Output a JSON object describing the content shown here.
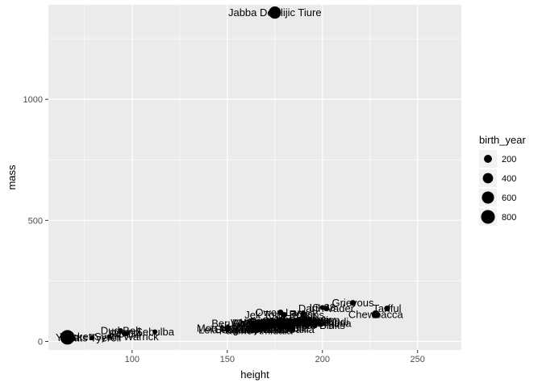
{
  "chart_data": {
    "type": "scatter",
    "title": "",
    "xlabel": "height",
    "ylabel": "mass",
    "xlim": [
      56,
      273
    ],
    "ylim": [
      -35,
      1390
    ],
    "x_ticks": [
      100,
      150,
      200,
      250
    ],
    "y_ticks": [
      0,
      500,
      1000
    ],
    "x_tick_labels": [
      "100",
      "150",
      "200",
      "250"
    ],
    "y_tick_labels": [
      "0",
      "500",
      "1000"
    ],
    "grid": true,
    "colors": {
      "panel": "#ebebeb",
      "grid": "#ffffff",
      "point": "#000000"
    },
    "legend": {
      "title": "birth_year",
      "placement": "right",
      "entries": [
        {
          "label": "200",
          "value": 200
        },
        {
          "label": "400",
          "value": 400
        },
        {
          "label": "600",
          "value": 600
        },
        {
          "label": "800",
          "value": 800
        }
      ]
    },
    "size_scale": {
      "min_value": 8,
      "max_value": 896
    },
    "points": [
      {
        "label": "Jabba Desilijic Tiure",
        "x": 175,
        "y": 1358,
        "size": 600
      },
      {
        "label": "Grievous",
        "x": 216,
        "y": 159,
        "size": 60
      },
      {
        "label": "Tarfful",
        "x": 234,
        "y": 136,
        "size": 60
      },
      {
        "label": "IG-88",
        "x": 200,
        "y": 140,
        "size": 15
      },
      {
        "label": "Darth Vader",
        "x": 202,
        "y": 136,
        "size": 42
      },
      {
        "label": "Chewbacca",
        "x": 228,
        "y": 112,
        "size": 200
      },
      {
        "label": "Owen Lars",
        "x": 178,
        "y": 120,
        "size": 52
      },
      {
        "label": "Qui-Gon Jinn",
        "x": 193,
        "y": 89,
        "size": 92
      },
      {
        "label": "Jek Tono Porkins",
        "x": 180,
        "y": 110,
        "size": 40
      },
      {
        "label": "Nute Gunray",
        "x": 191,
        "y": 90,
        "size": 60
      },
      {
        "label": "Ki-Adi-Mundi",
        "x": 198,
        "y": 82,
        "size": 92
      },
      {
        "label": "Cliegg Lars",
        "x": 183,
        "y": 80,
        "size": 82
      },
      {
        "label": "Lando Calrissian",
        "x": 177,
        "y": 79,
        "size": 31
      },
      {
        "label": "Gregar Typho",
        "x": 185,
        "y": 85,
        "size": 60
      },
      {
        "label": "Obi-Wan Kenobi",
        "x": 182,
        "y": 77,
        "size": 57
      },
      {
        "label": "Luke Skywalker",
        "x": 172,
        "y": 77,
        "size": 19
      },
      {
        "label": "Han Solo",
        "x": 180,
        "y": 80,
        "size": 29
      },
      {
        "label": "Biggs Darklighter",
        "x": 183,
        "y": 84,
        "size": 24
      },
      {
        "label": "Wedge Antilles",
        "x": 170,
        "y": 77,
        "size": 21
      },
      {
        "label": "Boba Fett",
        "x": 183,
        "y": 78,
        "size": 31
      },
      {
        "label": "Palpatine",
        "x": 170,
        "y": 75,
        "size": 82
      },
      {
        "label": "Mace Windu",
        "x": 188,
        "y": 84,
        "size": 72
      },
      {
        "label": "Dooku",
        "x": 193,
        "y": 80,
        "size": 102
      },
      {
        "label": "Bail Prestor Organa",
        "x": 191,
        "y": 75,
        "size": 67
      },
      {
        "label": "Jango Fett",
        "x": 183,
        "y": 79,
        "size": 66
      },
      {
        "label": "Lobot",
        "x": 175,
        "y": 79,
        "size": 37
      },
      {
        "label": "Wilhuff Tarkin",
        "x": 180,
        "y": 70,
        "size": 64
      },
      {
        "label": "Jar Jar Binks",
        "x": 196,
        "y": 66,
        "size": 52
      },
      {
        "label": "Ackbar",
        "x": 180,
        "y": 83,
        "size": 41
      },
      {
        "label": "Poggle the Lesser",
        "x": 183,
        "y": 80,
        "size": 30
      },
      {
        "label": "Plo Koon",
        "x": 188,
        "y": 80,
        "size": 22
      },
      {
        "label": "Finis Valorum",
        "x": 170,
        "y": 75,
        "size": 91
      },
      {
        "label": "Barriss Offee",
        "x": 166,
        "y": 50,
        "size": 40
      },
      {
        "label": "Luminara Unduli",
        "x": 170,
        "y": 56,
        "size": 58
      },
      {
        "label": "Ayla Secura",
        "x": 178,
        "y": 55,
        "size": 48
      },
      {
        "label": "Shmi Skywalker",
        "x": 163,
        "y": 50,
        "size": 72
      },
      {
        "label": "Beru Whitesun lars",
        "x": 165,
        "y": 75,
        "size": 47
      },
      {
        "label": "Padmé Amidala",
        "x": 165,
        "y": 45,
        "size": 46
      },
      {
        "label": "Leia Organa",
        "x": 150,
        "y": 49,
        "size": 19
      },
      {
        "label": "Mon Mothma",
        "x": 150,
        "y": 55,
        "size": 48
      },
      {
        "label": "Zam Wesell",
        "x": 168,
        "y": 55,
        "size": 30
      },
      {
        "label": "Adi Gallia",
        "x": 184,
        "y": 50,
        "size": 55
      },
      {
        "label": "Darth Maul",
        "x": 175,
        "y": 80,
        "size": 54
      },
      {
        "label": "Bossk",
        "x": 190,
        "y": 113,
        "size": 53
      },
      {
        "label": "R2-D2",
        "x": 96,
        "y": 32,
        "size": 33
      },
      {
        "label": "C-3PO",
        "x": 167,
        "y": 75,
        "size": 112
      },
      {
        "label": "R5-D4",
        "x": 97,
        "y": 32,
        "size": 8
      },
      {
        "label": "Sebulba",
        "x": 112,
        "y": 40,
        "size": 8
      },
      {
        "label": "Dud Bolt",
        "x": 94,
        "y": 45,
        "size": 8
      },
      {
        "label": "Yoda",
        "x": 66,
        "y": 17,
        "size": 896
      },
      {
        "label": "Wicket Systri Warrick",
        "x": 88,
        "y": 20,
        "size": 8
      },
      {
        "label": "Ratts Tyerell",
        "x": 79,
        "y": 15,
        "size": 8
      }
    ]
  }
}
